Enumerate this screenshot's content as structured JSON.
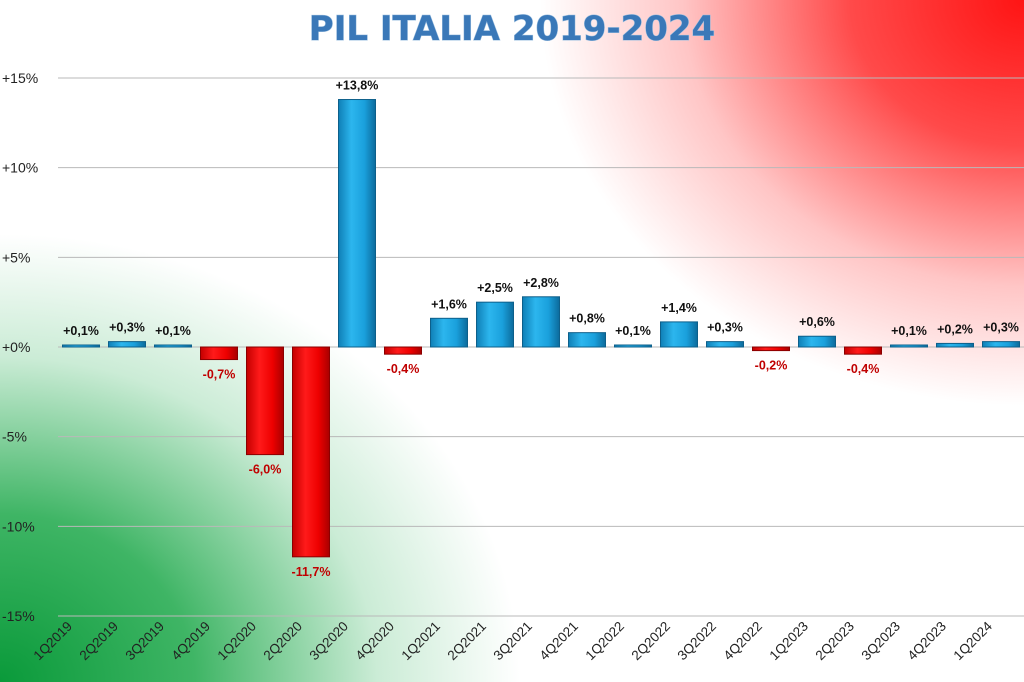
{
  "chart_data": {
    "type": "bar",
    "title": "PIL ITALIA 2019-2024",
    "xlabel": "",
    "ylabel": "",
    "ylim": [
      -15,
      15
    ],
    "yticks": [
      15,
      10,
      5,
      0,
      -5,
      -10,
      -15
    ],
    "ytick_labels": [
      "+15%",
      "+10%",
      "+5%",
      "+0%",
      "-5%",
      "-10%",
      "-15%"
    ],
    "categories": [
      "1Q2019",
      "2Q2019",
      "3Q2019",
      "4Q2019",
      "1Q2020",
      "2Q2020",
      "3Q2020",
      "4Q2020",
      "1Q2021",
      "2Q2021",
      "3Q2021",
      "4Q2021",
      "1Q2022",
      "2Q2022",
      "3Q2022",
      "4Q2022",
      "1Q2023",
      "2Q2023",
      "3Q2023",
      "4Q2023",
      "1Q2024"
    ],
    "values": [
      0.1,
      0.3,
      0.1,
      -0.7,
      -6.0,
      -11.7,
      13.8,
      -0.4,
      1.6,
      2.5,
      2.8,
      0.8,
      0.1,
      1.4,
      0.3,
      -0.2,
      0.6,
      -0.4,
      0.1,
      0.2,
      0.3
    ],
    "data_labels": [
      "+0,1%",
      "+0,3%",
      "+0,1%",
      "-0,7%",
      "-6,0%",
      "-11,7%",
      "+13,8%",
      "-0,4%",
      "+1,6%",
      "+2,5%",
      "+2,8%",
      "+0,8%",
      "+0,1%",
      "+1,4%",
      "+0,3%",
      "-0,2%",
      "+0,6%",
      "-0,4%",
      "+0,1%",
      "+0,2%",
      "+0,3%"
    ],
    "colors": {
      "positive": "#1aa0dc",
      "positive_edge": "#0d5f8a",
      "negative": "#ee0000",
      "negative_edge": "#8a0000",
      "negative_label": "#c00000",
      "title": "#3a78b8"
    },
    "grid": true
  }
}
